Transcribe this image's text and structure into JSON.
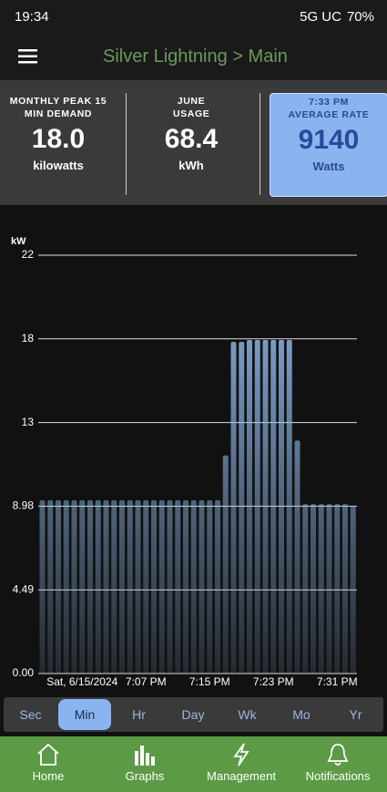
{
  "status_bar": {
    "time": "19:34",
    "network": "5G UC",
    "battery": "70%"
  },
  "header": {
    "title": "Silver Lightning > Main"
  },
  "stats": [
    {
      "label": "MONTHLY PEAK 15 MIN DEMAND",
      "value": "18.0",
      "unit": "kilowatts"
    },
    {
      "label": "JUNE USAGE",
      "value": "68.4",
      "unit": "kWh"
    },
    {
      "time": "7:33 PM",
      "label": "AVERAGE RATE",
      "value": "9140",
      "unit": "Watts"
    }
  ],
  "chart_data": {
    "type": "bar",
    "y_label": "kW",
    "color": "#8fb8e8",
    "grid": true,
    "categories": [
      null,
      null,
      null,
      null,
      null,
      "Sat, 6/15/2024",
      null,
      null,
      null,
      null,
      null,
      null,
      null,
      "7:07 PM",
      null,
      null,
      null,
      null,
      null,
      null,
      null,
      "7:15 PM",
      null,
      null,
      null,
      null,
      null,
      null,
      null,
      "7:23 PM",
      null,
      null,
      null,
      null,
      null,
      null,
      null,
      "7:31 PM",
      null,
      null
    ],
    "values": [
      9.3,
      9.3,
      9.3,
      9.3,
      9.3,
      9.3,
      9.3,
      9.3,
      9.3,
      9.3,
      9.3,
      9.3,
      9.3,
      9.3,
      9.3,
      9.3,
      9.3,
      9.3,
      9.3,
      9.3,
      9.3,
      9.3,
      9.3,
      11.7,
      17.8,
      17.8,
      17.9,
      17.9,
      17.9,
      17.9,
      17.9,
      17.9,
      12.5,
      9.1,
      9.1,
      9.1,
      9.1,
      9.1,
      9.1,
      9.0
    ],
    "ylim": [
      0,
      22.45
    ],
    "yticks": [
      {
        "value": 0,
        "label": "0.00"
      },
      4.49,
      8.98,
      {
        "value": 13.47,
        "label": "13"
      },
      {
        "value": 17.96,
        "label": "18"
      },
      {
        "value": 22.45,
        "label": "22"
      }
    ]
  },
  "range_tabs": {
    "options": [
      "Sec",
      "Min",
      "Hr",
      "Day",
      "Wk",
      "Mo",
      "Yr"
    ],
    "selected": "Min"
  },
  "nav": [
    "Home",
    "Graphs",
    "Management",
    "Notifications"
  ]
}
